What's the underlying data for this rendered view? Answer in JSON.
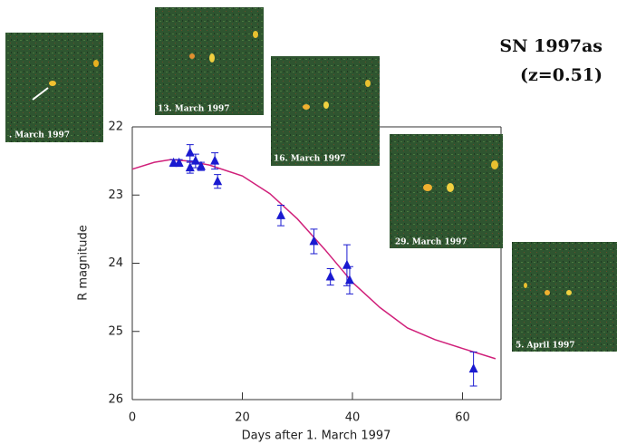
{
  "chart_data": {
    "type": "scatter",
    "title": "SN 1997as",
    "subtitle": "(z=0.51)",
    "x_label": "Days after 1. March 1997",
    "y_label": "R magnitude",
    "xlim": [
      0,
      67
    ],
    "xticks": [
      0,
      20,
      40,
      60
    ],
    "ylim": [
      26,
      22
    ],
    "yticks": [
      22,
      23,
      24,
      25,
      26
    ],
    "points": {
      "color": "#1a1ad0",
      "x": [
        7.5,
        8.5,
        10.5,
        10.5,
        11.5,
        12.5,
        15,
        15.5,
        27,
        33,
        36,
        39,
        39.5,
        62
      ],
      "values": [
        22.53,
        22.53,
        22.38,
        22.6,
        22.5,
        22.58,
        22.5,
        22.8,
        23.3,
        23.68,
        24.2,
        24.03,
        24.25,
        25.55
      ],
      "errors": [
        0.05,
        0.05,
        0.12,
        0.08,
        0.1,
        0.06,
        0.12,
        0.1,
        0.15,
        0.18,
        0.12,
        0.3,
        0.2,
        0.25
      ]
    },
    "fit": {
      "color": "#d0207a",
      "x": [
        0,
        4,
        7,
        10,
        14,
        20,
        25,
        30,
        35,
        40,
        45,
        50,
        55,
        60,
        66
      ],
      "values": [
        22.62,
        22.52,
        22.48,
        22.5,
        22.56,
        22.72,
        22.98,
        23.35,
        23.8,
        24.28,
        24.65,
        24.95,
        25.12,
        25.25,
        25.4
      ]
    }
  },
  "images": [
    {
      "label": ". March 1997"
    },
    {
      "label": "13. March 1997"
    },
    {
      "label": "16. March 1997"
    },
    {
      "label": "29. March 1997"
    },
    {
      "label": "5. April 1997"
    }
  ]
}
